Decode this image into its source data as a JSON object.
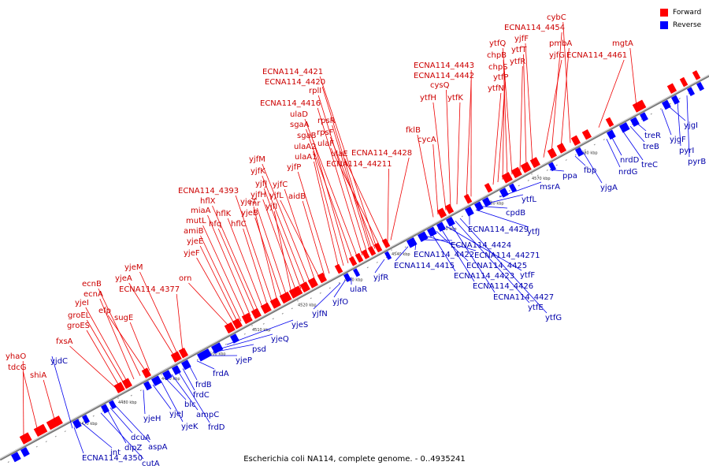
{
  "caption": "Escherichia coli NA114, complete genome. - 0..4935241",
  "legend": {
    "forward": {
      "label": "Forward",
      "color": "#ff0000"
    },
    "reverse": {
      "label": "Reverse",
      "color": "#0000ff"
    }
  },
  "axis": {
    "ticks": [
      "4470 kbp",
      "4480 kbp",
      "4490 kbp",
      "4500 kbp",
      "4510 kbp",
      "4520 kbp",
      "4530 kbp",
      "4540 kbp",
      "4550 kbp",
      "4560 kbp",
      "4570 kbp",
      "4580 kbp"
    ]
  },
  "genes_forward": [
    "yhaO",
    "tdcG",
    "shiA",
    "fxsA",
    "groES",
    "groEL",
    "yjeI",
    "ecnA",
    "ecnB",
    "efp",
    "sugE",
    "yjeA",
    "yjeM",
    "ECNA114_4377",
    "orn",
    "yjeF",
    "yjeE",
    "amiB",
    "mutL",
    "miaA",
    "hfq",
    "hflX",
    "hflK",
    "hflC",
    "ECNA114_4393",
    "yjeT",
    "yjeB",
    "rnr",
    "yjfI",
    "yjfH",
    "yjfJ",
    "yjfK",
    "yjfM",
    "yjfC",
    "yjfL",
    "aidB",
    "yjfP",
    "ulaA1",
    "ulaA2",
    "sgaB",
    "sgaA",
    "ulaD",
    "ECNA114_4416",
    "rplI",
    "ECNA114_4420",
    "ECNA114_4421",
    "rpsR",
    "rpsF",
    "ulaF",
    "ulaE",
    "ECNA114_4428",
    "ECNA114_44211",
    "fklB",
    "cycA",
    "ytfH",
    "cysQ",
    "ytfK",
    "ECNA114_4442",
    "ECNA114_4443",
    "ytfN",
    "ytfP",
    "chpS",
    "chpB",
    "ytfQ",
    "ytfR",
    "ytfT",
    "yjfF",
    "yjfG",
    "ECNA114_4454",
    "pmbA",
    "cybC",
    "ECNA114_4461",
    "mgtA"
  ],
  "genes_reverse": [
    "ECNA114_4350",
    "yjdC",
    "int",
    "cutA",
    "dipZ",
    "dcuA",
    "aspA",
    "yjeH",
    "yjeJ",
    "yjeK",
    "blc",
    "ampC",
    "frdD",
    "frdC",
    "frdB",
    "frdA",
    "yjeP",
    "psd",
    "yjeQ",
    "yjeS",
    "yjfN",
    "yjfO",
    "ulaR",
    "yjfR",
    "ECNA114_4415",
    "ECNA114_4422",
    "ECNA114_4424",
    "ECNA114_44271",
    "ECNA114_4423",
    "ECNA114_4425",
    "ECNA114_4426",
    "ytfF",
    "ECNA114_4427",
    "ytfE",
    "ytfG",
    "ECNA114_4429",
    "ytfJ",
    "cpdB",
    "ytfL",
    "msrA",
    "ppa",
    "fbp",
    "yjgA",
    "nrdG",
    "nrdD",
    "treC",
    "treB",
    "treR",
    "yjgF",
    "yjgI",
    "pyrI",
    "pyrB"
  ]
}
